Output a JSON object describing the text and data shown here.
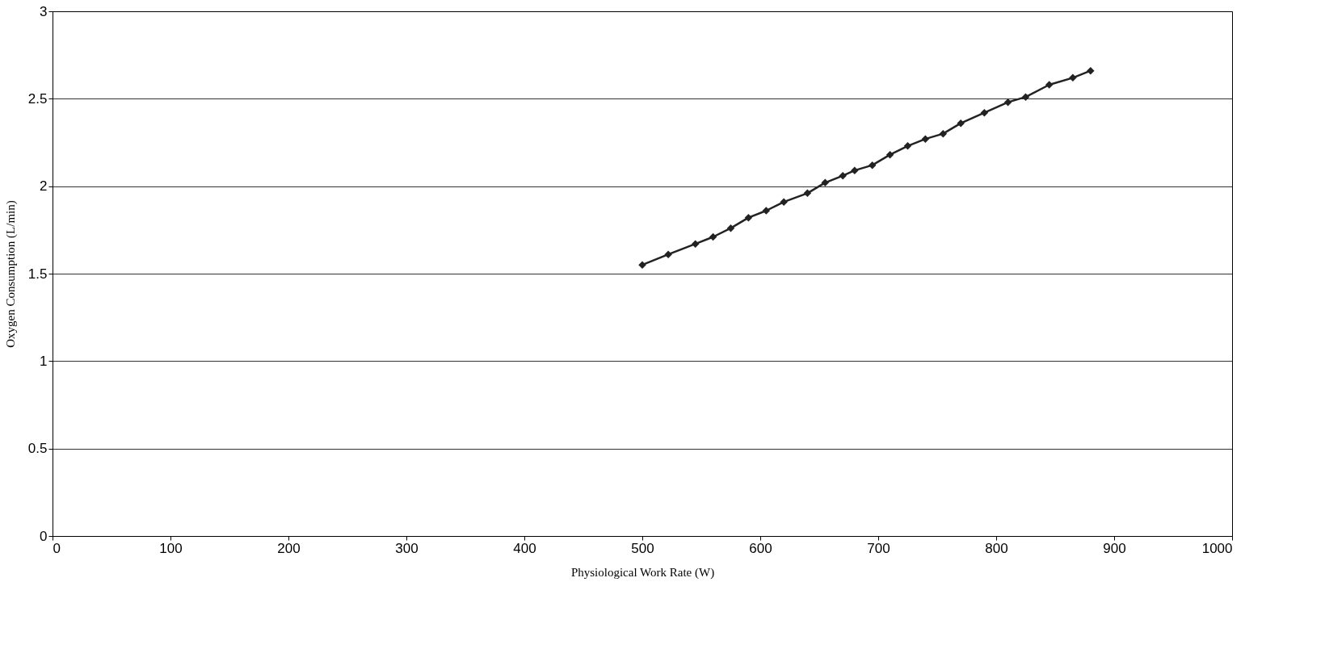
{
  "chart_data": {
    "type": "line",
    "xlabel": "Physiological Work Rate (W)",
    "ylabel": "Oxygen Consumption (L/min)",
    "x": [
      500,
      522,
      545,
      560,
      575,
      590,
      605,
      620,
      640,
      655,
      670,
      680,
      695,
      710,
      725,
      740,
      755,
      770,
      790,
      810,
      825,
      845,
      865,
      880
    ],
    "series": [
      {
        "color": "#222222",
        "values": [
          1.55,
          1.61,
          1.67,
          1.71,
          1.76,
          1.82,
          1.86,
          1.91,
          1.96,
          2.02,
          2.06,
          2.09,
          2.12,
          2.18,
          2.23,
          2.27,
          2.3,
          2.36,
          2.42,
          2.48,
          2.51,
          2.58,
          2.62,
          2.66
        ]
      }
    ],
    "xlim": [
      0,
      1000
    ],
    "xticks": [
      0,
      100,
      200,
      300,
      400,
      500,
      600,
      700,
      800,
      900,
      1000
    ],
    "ylim": [
      0,
      3
    ],
    "yticks": [
      0,
      0.5,
      1,
      1.5,
      2,
      2.5,
      3
    ],
    "grid": "y",
    "legend": false,
    "marker": "diamond",
    "line_style": "solid"
  }
}
